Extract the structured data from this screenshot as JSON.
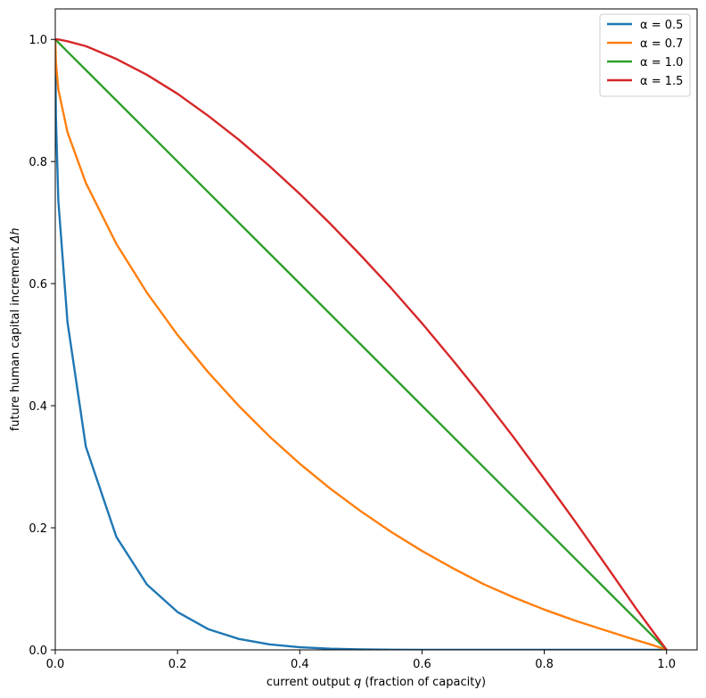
{
  "chart_data": {
    "type": "line",
    "title": "",
    "xlabel_parts": [
      "current output ",
      "q",
      " (fraction of capacity)"
    ],
    "ylabel_parts": [
      "future human capital increment ",
      "Δh"
    ],
    "xlim": [
      0.0,
      1.05
    ],
    "ylim": [
      0.0,
      1.05
    ],
    "xticks": [
      0.0,
      0.2,
      0.4,
      0.6,
      0.8,
      1.0
    ],
    "yticks": [
      0.0,
      0.2,
      0.4,
      0.6,
      0.8,
      1.0
    ],
    "xtick_labels": [
      "0.0",
      "0.2",
      "0.4",
      "0.6",
      "0.8",
      "1.0"
    ],
    "ytick_labels": [
      "0.0",
      "0.2",
      "0.4",
      "0.6",
      "0.8",
      "1.0"
    ],
    "grid": false,
    "legend_position": "top-right",
    "x": [
      0,
      0.001,
      0.005,
      0.02,
      0.05,
      0.1,
      0.15,
      0.2,
      0.25,
      0.3,
      0.35,
      0.4,
      0.45,
      0.5,
      0.55,
      0.6,
      0.65,
      0.7,
      0.75,
      0.8,
      0.85,
      0.9,
      0.95,
      0.98,
      0.995,
      1.0
    ],
    "series": [
      {
        "name": "α = 0.5",
        "color": "#1f77b4",
        "values": [
          1.0,
          0.875,
          0.736,
          0.537,
          0.333,
          0.185,
          0.107,
          0.062,
          0.034,
          0.018,
          0.009,
          0.0043,
          0.0019,
          0.0008,
          0.0003,
          0.0001,
          4e-05,
          1e-05,
          0.0,
          0.0,
          0.0,
          0.0,
          0.0,
          0.0,
          0.0,
          0.0
        ],
        "values_note_free": true
      },
      {
        "name": "α = 0.7",
        "color": "#ff7f0e",
        "values": [
          1.0,
          0.963,
          0.918,
          0.848,
          0.765,
          0.665,
          0.585,
          0.516,
          0.455,
          0.4,
          0.35,
          0.305,
          0.264,
          0.227,
          0.193,
          0.162,
          0.134,
          0.108,
          0.086,
          0.066,
          0.048,
          0.032,
          0.016,
          0.007,
          0.002,
          0.0
        ]
      },
      {
        "name": "α = 1.0",
        "color": "#2ca02c",
        "values": [
          1.0,
          0.999,
          0.995,
          0.98,
          0.95,
          0.9,
          0.85,
          0.8,
          0.75,
          0.7,
          0.65,
          0.6,
          0.55,
          0.5,
          0.45,
          0.4,
          0.35,
          0.3,
          0.25,
          0.2,
          0.15,
          0.1,
          0.05,
          0.02,
          0.005,
          0.0
        ]
      },
      {
        "name": "α = 1.5",
        "color": "#d62728",
        "values": [
          1.0,
          1.0,
          1.0,
          0.997,
          0.989,
          0.968,
          0.942,
          0.911,
          0.875,
          0.836,
          0.793,
          0.747,
          0.698,
          0.646,
          0.592,
          0.535,
          0.475,
          0.413,
          0.348,
          0.28,
          0.211,
          0.14,
          0.068,
          0.027,
          0.007,
          0.0
        ]
      }
    ]
  }
}
